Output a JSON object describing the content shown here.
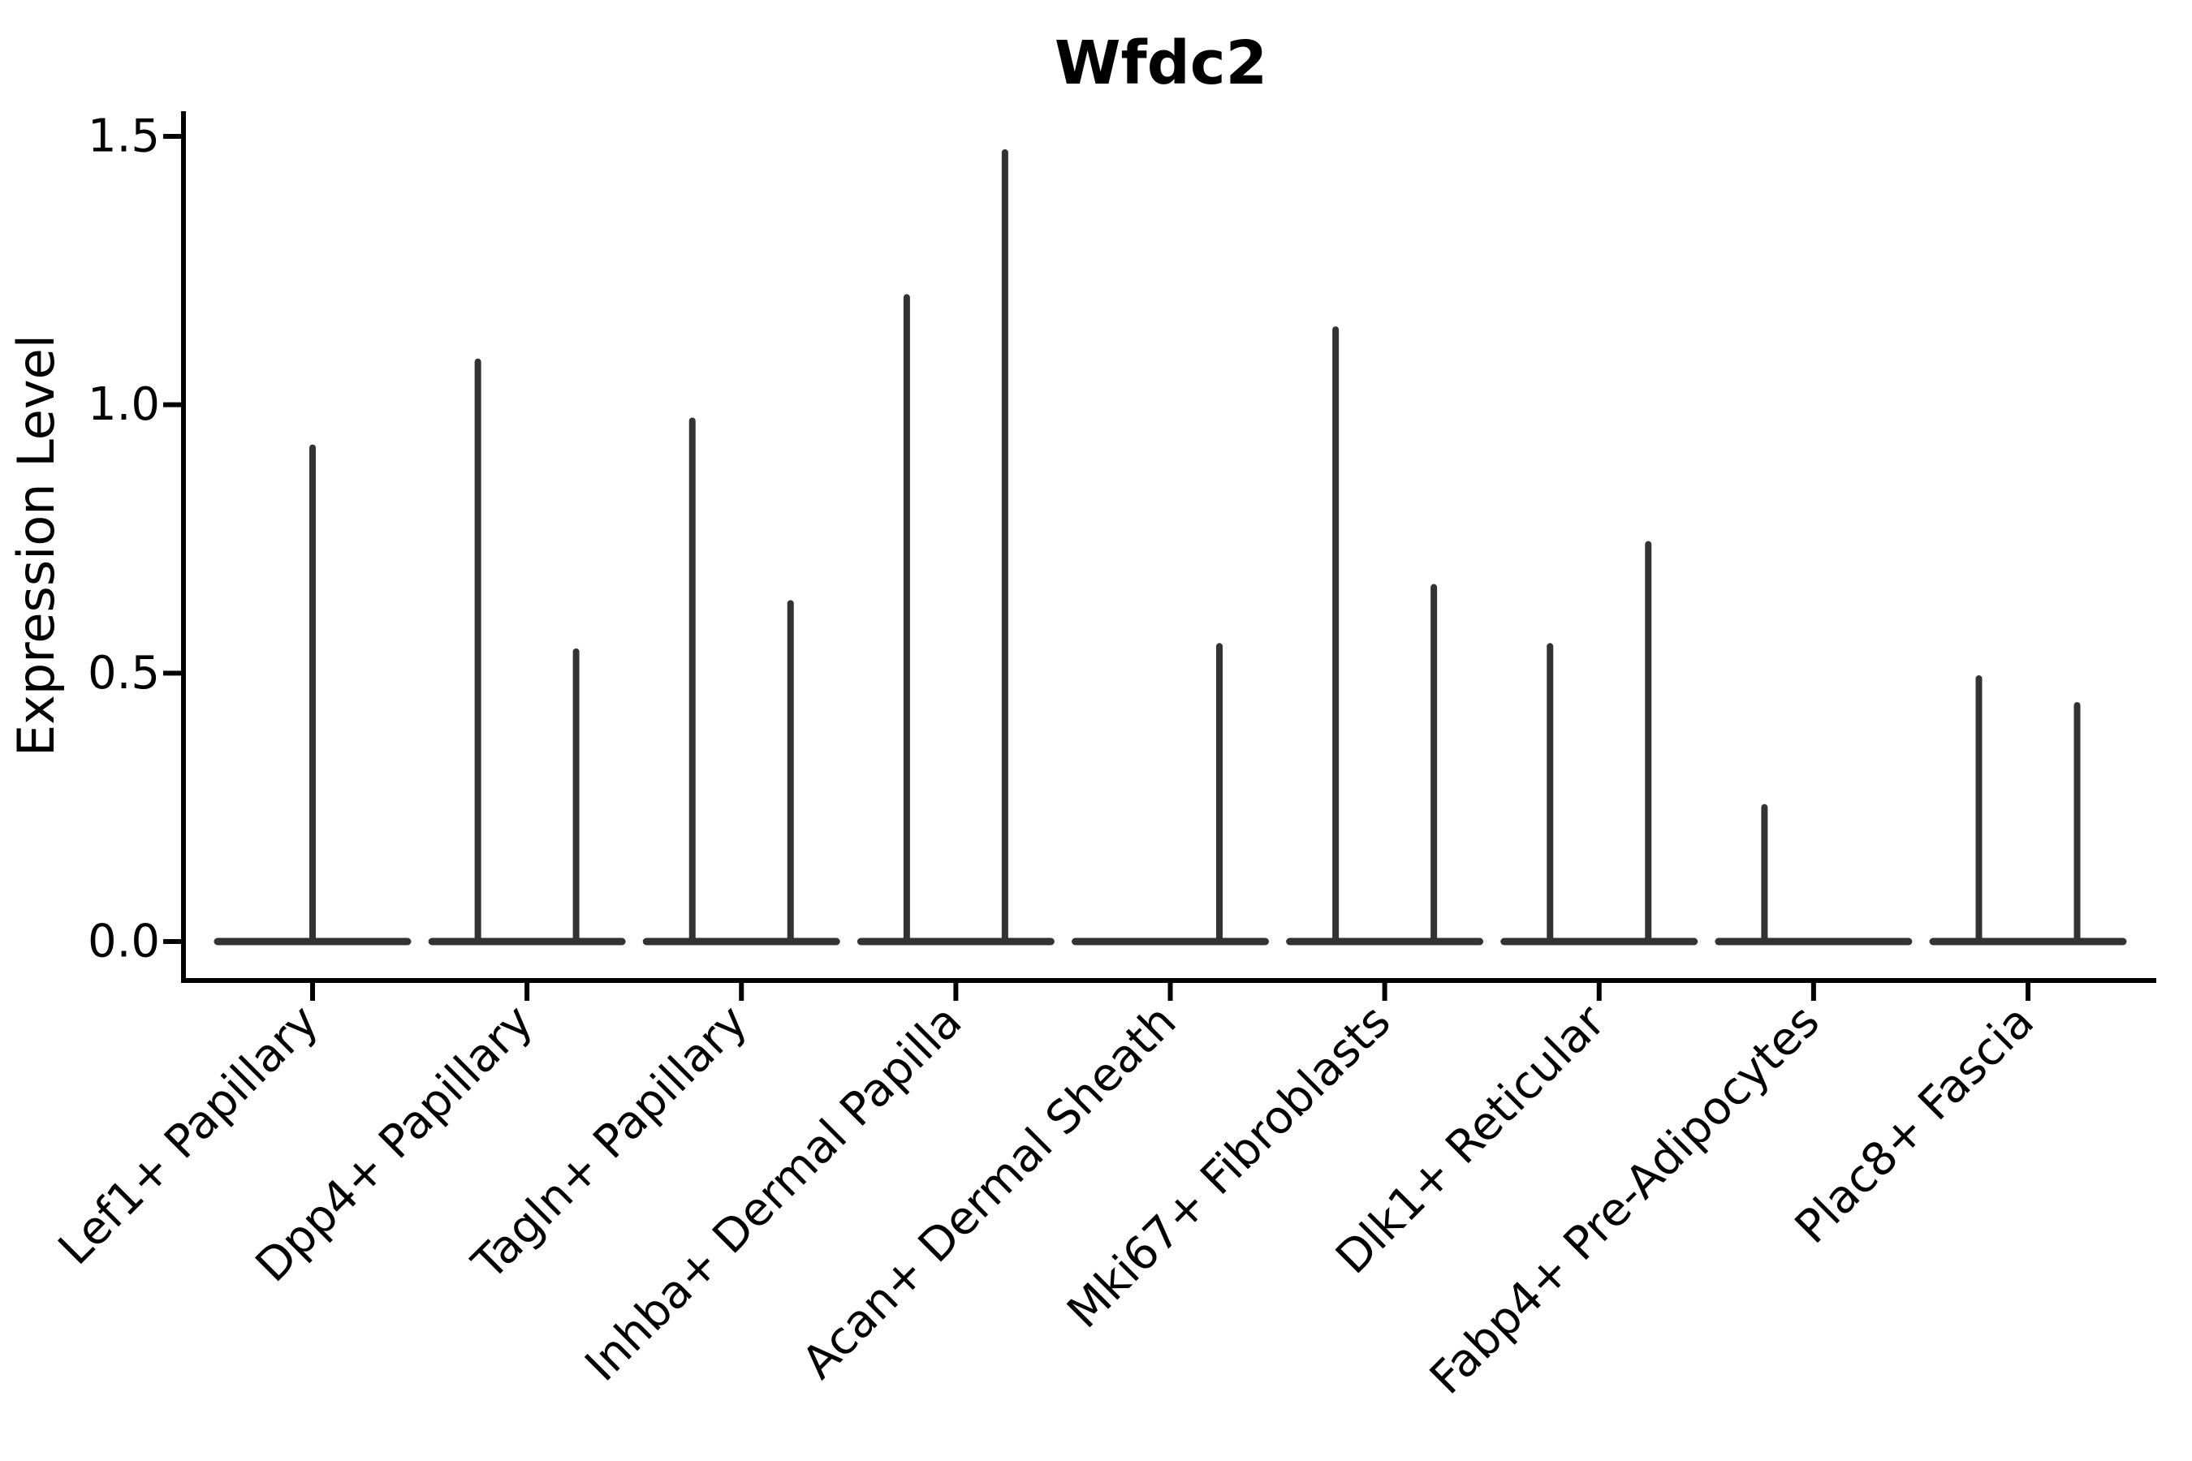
{
  "figure": {
    "background": "#ffffff"
  },
  "colors": {
    "violin_stroke": "#333333",
    "axis": "#000000",
    "text": "#000000"
  },
  "chart_data": {
    "type": "violin",
    "title": "Wfdc2",
    "xlabel": "",
    "ylabel": "Expression Level",
    "ylim": [
      -0.07,
      1.57
    ],
    "grid": false,
    "legend": "none",
    "x_tick_rotation_deg": 45,
    "yticks": [
      {
        "value": 0.0,
        "label": "0.0"
      },
      {
        "value": 0.5,
        "label": "0.5"
      },
      {
        "value": 1.0,
        "label": "1.0"
      },
      {
        "value": 1.5,
        "label": "1.5"
      }
    ],
    "categories": [
      "Lef1+ Papillary",
      "Dpp4+ Papillary",
      "Tagln+ Papillary",
      "Inhba+ Dermal Papilla",
      "Acan+ Dermal Sheath",
      "Mki67+ Fibroblasts",
      "Dlk1+ Reticular",
      "Fabp4+ Pre-Adipocytes",
      "Plac8+ Fascia"
    ],
    "violins": [
      {
        "category": "Lef1+ Papillary",
        "violins": [
          {
            "slot": "full",
            "max": 0.92
          }
        ]
      },
      {
        "category": "Dpp4+ Papillary",
        "violins": [
          {
            "slot": "left",
            "max": 1.08
          },
          {
            "slot": "right",
            "max": 0.54
          }
        ]
      },
      {
        "category": "Tagln+ Papillary",
        "violins": [
          {
            "slot": "left",
            "max": 0.97
          },
          {
            "slot": "right",
            "max": 0.63
          }
        ]
      },
      {
        "category": "Inhba+ Dermal Papilla",
        "violins": [
          {
            "slot": "left",
            "max": 1.2
          },
          {
            "slot": "right",
            "max": 1.47
          }
        ]
      },
      {
        "category": "Acan+ Dermal Sheath",
        "violins": [
          {
            "slot": "left",
            "max": 0.0
          },
          {
            "slot": "right",
            "max": 0.55
          }
        ]
      },
      {
        "category": "Mki67+ Fibroblasts",
        "violins": [
          {
            "slot": "left",
            "max": 1.14
          },
          {
            "slot": "right",
            "max": 0.66
          }
        ]
      },
      {
        "category": "Dlk1+ Reticular",
        "violins": [
          {
            "slot": "left",
            "max": 0.55
          },
          {
            "slot": "right",
            "max": 0.74
          }
        ]
      },
      {
        "category": "Fabp4+ Pre-Adipocytes",
        "violins": [
          {
            "slot": "left",
            "max": 0.25
          },
          {
            "slot": "right",
            "max": 0.0
          }
        ]
      },
      {
        "category": "Plac8+ Fascia",
        "violins": [
          {
            "slot": "left",
            "max": 0.49
          },
          {
            "slot": "right",
            "max": 0.44
          }
        ]
      }
    ],
    "baseline_value": 0.0
  }
}
